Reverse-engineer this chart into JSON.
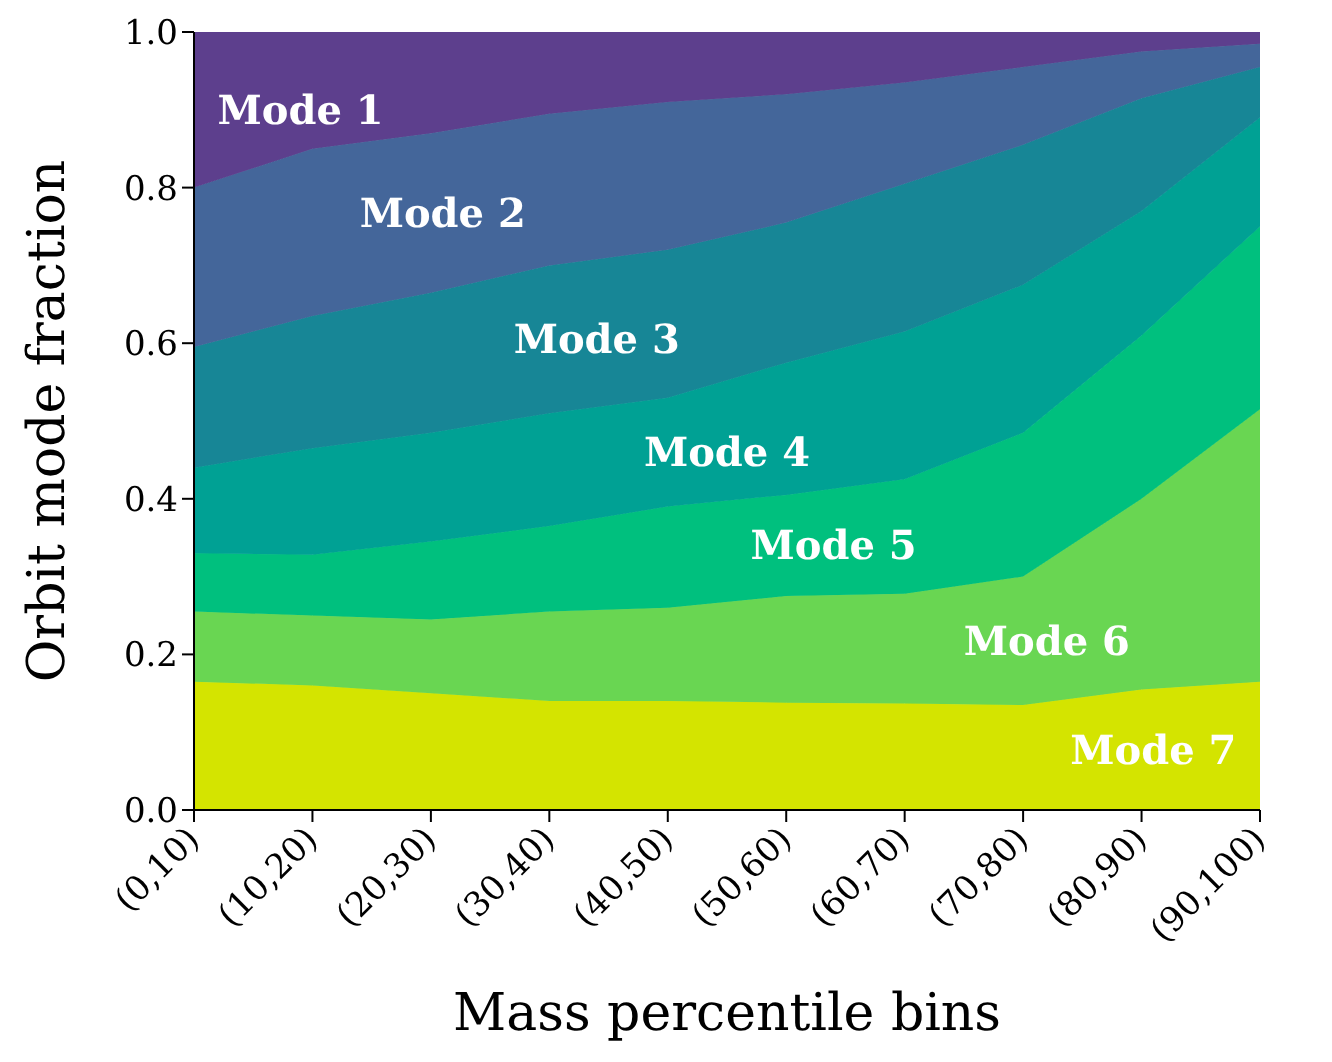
{
  "chart_data": {
    "type": "area",
    "stacked": true,
    "xlabel": "Mass percentile bins",
    "ylabel": "Orbit mode fraction",
    "categories": [
      "(0,10)",
      "(10,20)",
      "(20,30)",
      "(30,40)",
      "(40,50)",
      "(50,60)",
      "(60,70)",
      "(70,80)",
      "(80,90)",
      "(90,100)"
    ],
    "series": [
      {
        "name": "Mode 7",
        "color": "#d4e400",
        "values": [
          0.165,
          0.16,
          0.15,
          0.14,
          0.14,
          0.138,
          0.137,
          0.135,
          0.155,
          0.165
        ]
      },
      {
        "name": "Mode 6",
        "color": "#69d652",
        "values": [
          0.09,
          0.09,
          0.095,
          0.115,
          0.12,
          0.137,
          0.141,
          0.165,
          0.245,
          0.35
        ]
      },
      {
        "name": "Mode 5",
        "color": "#00c07e",
        "values": [
          0.075,
          0.078,
          0.1,
          0.11,
          0.13,
          0.13,
          0.147,
          0.185,
          0.21,
          0.235
        ]
      },
      {
        "name": "Mode 4",
        "color": "#00a194",
        "values": [
          0.11,
          0.137,
          0.14,
          0.145,
          0.14,
          0.17,
          0.19,
          0.19,
          0.16,
          0.14
        ]
      },
      {
        "name": "Mode 3",
        "color": "#178696",
        "values": [
          0.155,
          0.17,
          0.18,
          0.19,
          0.19,
          0.18,
          0.19,
          0.18,
          0.145,
          0.065
        ]
      },
      {
        "name": "Mode 2",
        "color": "#44669a",
        "values": [
          0.205,
          0.215,
          0.205,
          0.195,
          0.19,
          0.165,
          0.13,
          0.1,
          0.06,
          0.03
        ]
      },
      {
        "name": "Mode 1",
        "color": "#5d3f8d",
        "values": [
          0.2,
          0.15,
          0.13,
          0.105,
          0.09,
          0.08,
          0.065,
          0.045,
          0.025,
          0.015
        ]
      }
    ],
    "ylim": [
      0,
      1
    ],
    "yticks": [
      {
        "value": 0,
        "label": "0.0"
      },
      {
        "value": 0.2,
        "label": "0.2"
      },
      {
        "value": 0.4,
        "label": "0.4"
      },
      {
        "value": 0.6,
        "label": "0.6"
      },
      {
        "value": 0.8,
        "label": "0.8"
      },
      {
        "value": 1,
        "label": "1.0"
      }
    ],
    "legend": false,
    "grid": false
  }
}
